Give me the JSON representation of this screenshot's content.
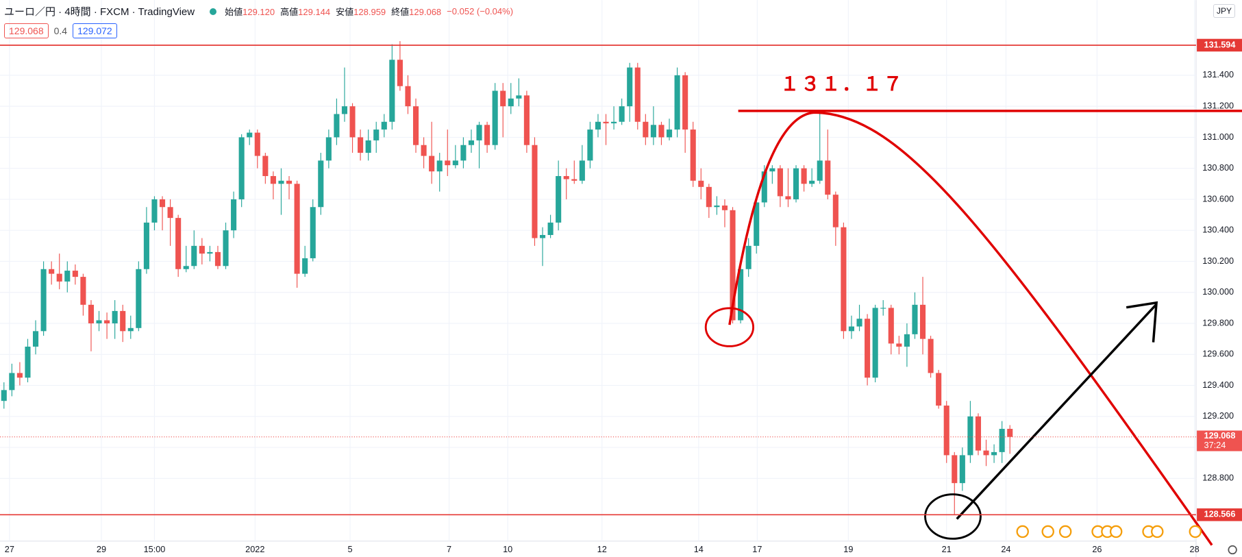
{
  "header": {
    "symbol": "ユーロ／円 · 4時間 · FXCM · TradingView",
    "stats": [
      {
        "label": "始値",
        "value": "129.120"
      },
      {
        "label": "高値",
        "value": "129.144"
      },
      {
        "label": "安値",
        "value": "128.959"
      },
      {
        "label": "終値",
        "value": "129.068"
      }
    ],
    "change": "−0.052 (−0.04%)",
    "bid": "129.068",
    "spread": "0.4",
    "ask": "129.072",
    "currency": "JPY"
  },
  "chart_data": {
    "type": "candlestick",
    "up_color": "#26a69a",
    "down_color": "#ef5350",
    "open": [
      129.3,
      129.37,
      129.48,
      129.45,
      129.65,
      129.75,
      130.15,
      130.12,
      130.07,
      130.14,
      130.1,
      129.92,
      129.8,
      129.82,
      129.8,
      129.88,
      129.75,
      129.77,
      130.15,
      130.45,
      130.6,
      130.55,
      130.48,
      130.15,
      130.17,
      130.3,
      130.25,
      130.26,
      130.17,
      130.4,
      130.6,
      131.0,
      131.03,
      130.88,
      130.75,
      130.7,
      130.72,
      130.7,
      130.12,
      130.22,
      130.55,
      130.85,
      131.0,
      131.15,
      131.2,
      131.0,
      130.9,
      130.98,
      131.05,
      131.1,
      131.5,
      131.33,
      131.2,
      130.95,
      130.88,
      130.78,
      130.85,
      130.82,
      130.85,
      130.95,
      130.98,
      131.08,
      130.95,
      131.3,
      131.2,
      131.25,
      131.27,
      130.95,
      130.35,
      130.37,
      130.45,
      130.75,
      130.73,
      130.72,
      130.85,
      131.05,
      131.1,
      131.09,
      131.1,
      131.2,
      131.45,
      131.1,
      131.0,
      131.08,
      131.0,
      131.05,
      131.4,
      131.05,
      130.72,
      130.68,
      130.55,
      130.56,
      130.53,
      129.82,
      130.15,
      130.3,
      130.58,
      130.78,
      130.8,
      130.62,
      130.6,
      130.8,
      130.7,
      130.72,
      130.85,
      130.63,
      130.42,
      129.75,
      129.78,
      129.83,
      129.45,
      129.9,
      129.9,
      129.67,
      129.65,
      129.73,
      129.92,
      129.7,
      129.48,
      129.27,
      128.95,
      128.77,
      128.95,
      129.2,
      128.98,
      128.95,
      128.97,
      129.12
    ],
    "high": [
      129.42,
      129.54,
      129.55,
      129.7,
      129.82,
      130.2,
      130.2,
      130.25,
      130.2,
      130.18,
      130.12,
      129.95,
      129.88,
      129.87,
      129.95,
      129.92,
      129.85,
      130.2,
      130.55,
      130.62,
      130.62,
      130.6,
      130.5,
      130.3,
      130.4,
      130.35,
      130.3,
      130.3,
      130.45,
      130.65,
      131.02,
      131.05,
      131.05,
      130.9,
      130.78,
      130.8,
      130.75,
      130.72,
      130.3,
      130.6,
      130.9,
      131.05,
      131.25,
      131.45,
      131.22,
      131.05,
      131.05,
      131.1,
      131.15,
      131.6,
      131.62,
      131.4,
      131.25,
      131.0,
      131.1,
      130.9,
      131.05,
      130.95,
      131.0,
      131.05,
      131.1,
      131.1,
      131.35,
      131.35,
      131.35,
      131.38,
      131.3,
      131.0,
      130.42,
      130.5,
      130.85,
      130.8,
      130.85,
      130.95,
      131.1,
      131.15,
      131.15,
      131.2,
      131.25,
      131.48,
      131.48,
      131.15,
      131.2,
      131.1,
      131.12,
      131.45,
      131.42,
      131.1,
      130.8,
      130.7,
      130.62,
      130.6,
      130.55,
      130.2,
      130.35,
      130.62,
      130.82,
      130.82,
      130.82,
      130.8,
      130.82,
      130.82,
      130.8,
      131.16,
      131.05,
      130.65,
      130.45,
      129.85,
      129.92,
      129.86,
      129.92,
      129.95,
      129.92,
      129.72,
      129.8,
      130.0,
      130.1,
      129.72,
      129.5,
      129.3,
      128.97,
      129.0,
      129.3,
      129.22,
      129.05,
      129.02,
      129.17,
      129.144
    ],
    "low": [
      129.25,
      129.33,
      129.4,
      129.42,
      129.6,
      129.72,
      130.05,
      130.02,
      130.0,
      130.05,
      129.85,
      129.62,
      129.75,
      129.7,
      129.7,
      129.68,
      129.7,
      129.75,
      130.12,
      130.4,
      130.4,
      130.3,
      130.1,
      130.13,
      130.15,
      130.18,
      130.2,
      130.15,
      130.15,
      130.35,
      130.55,
      130.95,
      130.8,
      130.7,
      130.6,
      130.5,
      130.6,
      130.03,
      130.1,
      130.2,
      130.5,
      130.8,
      130.95,
      131.1,
      130.9,
      130.85,
      130.85,
      130.9,
      131.0,
      131.05,
      131.3,
      131.15,
      130.9,
      130.8,
      130.7,
      130.65,
      130.75,
      130.8,
      130.8,
      130.9,
      130.8,
      130.9,
      130.92,
      131.0,
      131.15,
      131.2,
      130.9,
      130.3,
      130.17,
      130.35,
      130.4,
      130.6,
      130.7,
      130.7,
      130.8,
      131.0,
      130.95,
      131.05,
      131.08,
      131.1,
      131.05,
      130.95,
      130.95,
      130.95,
      130.98,
      131.0,
      130.9,
      130.68,
      130.6,
      130.48,
      130.5,
      130.42,
      129.8,
      129.8,
      130.1,
      130.25,
      130.55,
      130.7,
      130.55,
      130.55,
      130.58,
      130.65,
      130.68,
      130.7,
      130.6,
      130.3,
      129.7,
      129.7,
      129.75,
      129.4,
      129.42,
      129.85,
      129.6,
      129.6,
      129.52,
      129.7,
      129.6,
      129.45,
      129.25,
      128.9,
      128.57,
      128.72,
      128.9,
      128.95,
      128.88,
      128.9,
      128.9,
      128.959
    ],
    "close": [
      129.37,
      129.48,
      129.45,
      129.65,
      129.75,
      130.15,
      130.12,
      130.07,
      130.14,
      130.1,
      129.92,
      129.8,
      129.82,
      129.8,
      129.88,
      129.75,
      129.77,
      130.15,
      130.45,
      130.6,
      130.55,
      130.48,
      130.15,
      130.17,
      130.3,
      130.25,
      130.26,
      130.17,
      130.4,
      130.6,
      131.0,
      131.03,
      130.88,
      130.75,
      130.7,
      130.72,
      130.7,
      130.12,
      130.22,
      130.55,
      130.85,
      131.0,
      131.15,
      131.2,
      131.0,
      130.9,
      130.98,
      131.05,
      131.1,
      131.5,
      131.33,
      131.2,
      130.95,
      130.88,
      130.78,
      130.85,
      130.82,
      130.85,
      130.95,
      130.98,
      131.08,
      130.95,
      131.3,
      131.2,
      131.25,
      131.27,
      130.95,
      130.35,
      130.37,
      130.45,
      130.75,
      130.73,
      130.72,
      130.85,
      131.05,
      131.1,
      131.09,
      131.1,
      131.2,
      131.45,
      131.1,
      131.0,
      131.08,
      131.0,
      131.05,
      131.4,
      131.05,
      130.72,
      130.68,
      130.55,
      130.56,
      130.53,
      129.82,
      130.15,
      130.3,
      130.58,
      130.78,
      130.8,
      130.62,
      130.6,
      130.8,
      130.7,
      130.72,
      130.85,
      130.63,
      130.42,
      129.75,
      129.78,
      129.83,
      129.45,
      129.9,
      129.9,
      129.67,
      129.65,
      129.73,
      129.92,
      129.7,
      129.48,
      129.27,
      128.95,
      128.77,
      128.95,
      129.2,
      128.98,
      128.95,
      128.97,
      129.12,
      129.068
    ],
    "xlim": [
      -0.5,
      150.5
    ],
    "xticks": [
      {
        "value": 0.7,
        "label": "27"
      },
      {
        "value": 12.3,
        "label": "29"
      },
      {
        "value": 19,
        "label": "15:00"
      },
      {
        "value": 31.7,
        "label": "2022"
      },
      {
        "value": 43.7,
        "label": "5"
      },
      {
        "value": 56.2,
        "label": "7"
      },
      {
        "value": 63.6,
        "label": "10"
      },
      {
        "value": 75.5,
        "label": "12"
      },
      {
        "value": 87.7,
        "label": "14"
      },
      {
        "value": 95.1,
        "label": "17"
      },
      {
        "value": 106.6,
        "label": "19"
      },
      {
        "value": 119,
        "label": "21"
      },
      {
        "value": 126.5,
        "label": "24"
      },
      {
        "value": 138,
        "label": "26"
      },
      {
        "value": 150.3,
        "label": "28"
      }
    ],
    "ylim": [
      128.396,
      131.742
    ],
    "yticks": [
      {
        "value": 128.8,
        "label": "128.800"
      },
      {
        "value": 129.0,
        "label": "129.000"
      },
      {
        "value": 129.2,
        "label": "129.200"
      },
      {
        "value": 129.4,
        "label": "129.400"
      },
      {
        "value": 129.6,
        "label": "129.600"
      },
      {
        "value": 129.8,
        "label": "129.800"
      },
      {
        "value": 130.0,
        "label": "130.000"
      },
      {
        "value": 130.2,
        "label": "130.200"
      },
      {
        "value": 130.4,
        "label": "130.400"
      },
      {
        "value": 130.6,
        "label": "130.600"
      },
      {
        "value": 130.8,
        "label": "130.800"
      },
      {
        "value": 131.0,
        "label": "131.000"
      },
      {
        "value": 131.2,
        "label": "131.200"
      },
      {
        "value": 131.4,
        "label": "131.400"
      }
    ],
    "grid": true,
    "levels": [
      131.594,
      128.566
    ],
    "level_color": "#e53935",
    "annotation": {
      "value": 131.17,
      "label": "１３１．１７"
    },
    "last_price": 129.068,
    "countdown": "37:24"
  }
}
